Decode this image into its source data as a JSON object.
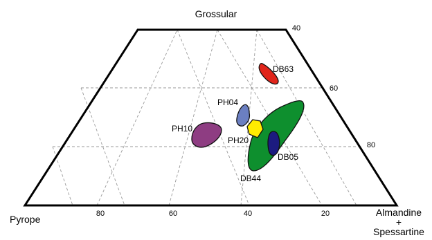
{
  "vertices": {
    "top": "Grossular",
    "left": "Pyrope",
    "right_line1": "Almandine",
    "right_line2": "+",
    "right_line3": "Spessartine"
  },
  "bottom_ticks": [
    "80",
    "60",
    "40",
    "20"
  ],
  "right_ticks": [
    "40",
    "60",
    "80"
  ],
  "fields": [
    {
      "label": "DB63",
      "color": "#e1251b"
    },
    {
      "label": "PH04",
      "color": "#6b7fc1"
    },
    {
      "label": "PH20",
      "color": "#ffec00"
    },
    {
      "label": "PH10",
      "color": "#8e3d82"
    },
    {
      "label": "DB44",
      "color": "#0e8f2e"
    },
    {
      "label": "DB05",
      "color": "#1c1b80"
    }
  ]
}
